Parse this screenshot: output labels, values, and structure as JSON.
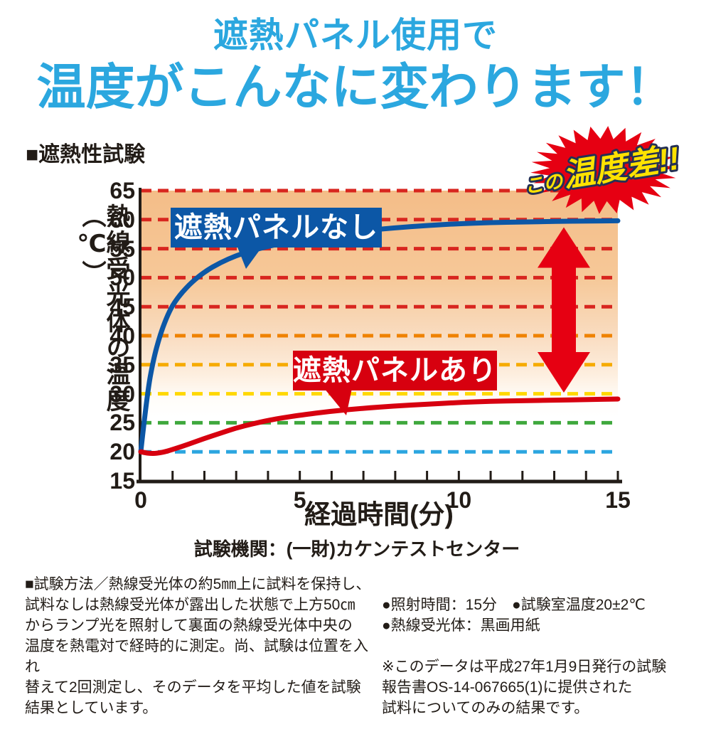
{
  "title": {
    "line1": "遮熱パネル使用で",
    "line2": "温度がこんなに変わります！"
  },
  "section_heading": "■遮熱性試験",
  "badge": {
    "prefix": "この",
    "main": "温度差!!"
  },
  "caption": "試験機関：(一財)カケンテストセンター",
  "notes": {
    "method": "■試験方法／熱線受光体の約5㎜上に試料を保持し、\n試料なしは熱線受光体が露出した状態で上方50㎝\nからランプ光を照射して裏面の熱線受光体中央の\n温度を熱電対で経時的に測定。尚、試験は位置を入れ\n替えて2回測定し、そのデータを平均した値を試験\n結果としています。",
    "conditions": "●照射時間：15分　●試験室温度20±2℃\n●熱線受光体：黒画用紙",
    "disclaimer": "※このデータは平成27年1月9日発行の試験\n報告書OS-14-067665(1)に提供された\n試料についてのみの結果です。"
  },
  "colors": {
    "headline_blue": "#2BA7DF",
    "text_black": "#221c17",
    "series_without_panel": "#0c57a6",
    "series_with_panel": "#d7000f",
    "arrow_red": "#e60012",
    "badge_burst_red": "#e60012",
    "badge_text_yellow": "#ffe200"
  },
  "chart_data": {
    "type": "line",
    "title": "遮熱性試験",
    "xlabel": "経過時間(分)",
    "ylabel": "熱線受光体の温度（℃）",
    "xlim": [
      0,
      15
    ],
    "ylim": [
      15,
      65
    ],
    "x_ticks": [
      0,
      5,
      10,
      15
    ],
    "x_minor_tick_step": 1,
    "y_ticks": [
      65,
      60,
      55,
      50,
      45,
      40,
      35,
      30,
      25,
      20,
      15
    ],
    "grid": "horizontal-dashed",
    "background": "orange-to-white vertical gradient",
    "gridline_colors": {
      "65": "#d8261f",
      "60": "#d8261f",
      "55": "#d8261f",
      "50": "#d8261f",
      "45": "#d8261f",
      "40": "#ef8200",
      "35": "#f6ab00",
      "30": "#ffd800",
      "25": "#3fa83d",
      "20": "#2ca6e0"
    },
    "legend_position": "labels-on-plot",
    "series": [
      {
        "name": "遮熱パネルなし",
        "color": "#0c57a6",
        "x": [
          0,
          0.2,
          0.4,
          0.6,
          0.8,
          1,
          1.3,
          1.6,
          2,
          2.5,
          3,
          3.5,
          4,
          4.5,
          5,
          5.5,
          6,
          7,
          8,
          9,
          10,
          11,
          12,
          13,
          14,
          15
        ],
        "y": [
          20,
          30,
          36,
          40,
          43,
          45.3,
          47.5,
          49.2,
          51,
          52.6,
          53.8,
          54.7,
          55.4,
          56,
          56.5,
          57,
          57.4,
          58.1,
          58.6,
          59,
          59.3,
          59.5,
          59.6,
          59.7,
          59.75,
          59.8
        ]
      },
      {
        "name": "遮熱パネルあり",
        "color": "#d7000f",
        "x": [
          0,
          0.3,
          0.7,
          1,
          1.5,
          2,
          2.5,
          3,
          3.5,
          4,
          4.5,
          5,
          6,
          7,
          8,
          9,
          10,
          11,
          12,
          13,
          14,
          15
        ],
        "y": [
          20,
          19.6,
          19.9,
          20.4,
          21.3,
          22.3,
          23.2,
          24.1,
          24.8,
          25.4,
          25.9,
          26.3,
          27,
          27.5,
          27.9,
          28.2,
          28.5,
          28.7,
          28.8,
          28.9,
          29,
          29.1
        ]
      }
    ],
    "annotations": [
      {
        "type": "burst-badge",
        "text": "この温度差!!"
      },
      {
        "type": "double-headed-arrow",
        "x": 13.3,
        "y_from": 59.3,
        "y_to": 30.2,
        "meaning": "temperature difference of about 30°C between the two curves"
      }
    ]
  }
}
